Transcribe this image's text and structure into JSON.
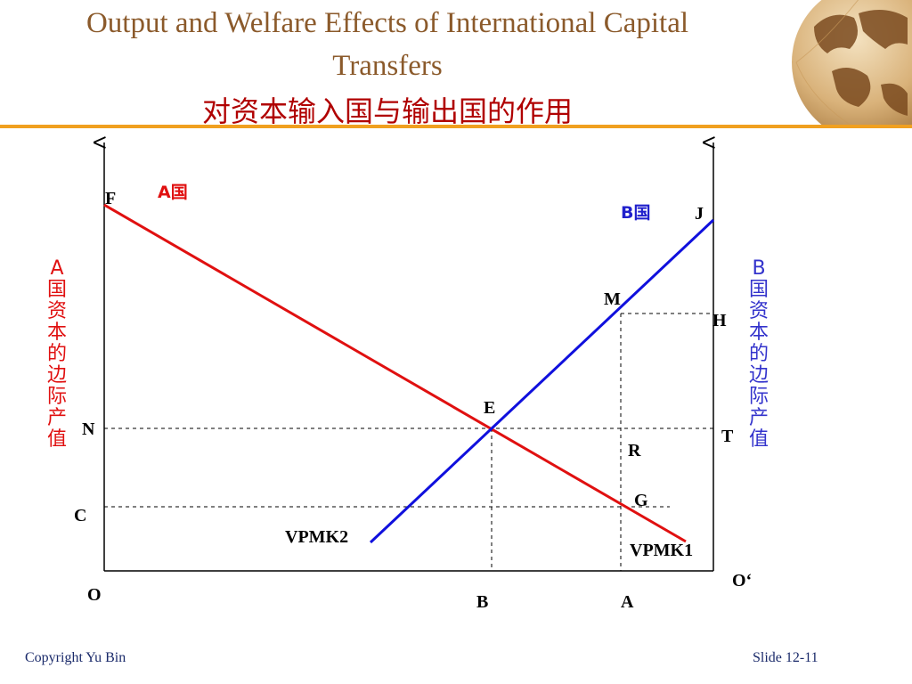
{
  "title": {
    "line1": "Output and Welfare Effects of International Capital",
    "line2": "Transfers",
    "line_zh": "对资本输入国与输出国的作用"
  },
  "axis_labels": {
    "a_side": "A国资本的边际产值",
    "b_side": "B国资本的边际产值"
  },
  "curve_labels": {
    "country_a": "A国",
    "country_b": "B国",
    "vpmk1": "VPMK1",
    "vpmk2": "VPMK2"
  },
  "points": {
    "F": "F",
    "J": "J",
    "M": "M",
    "H": "H",
    "E": "E",
    "N": "N",
    "T": "T",
    "R": "R",
    "G": "G",
    "C": "C",
    "O": "O",
    "O_prime": "O‘",
    "B": "B",
    "A": "A"
  },
  "colors": {
    "country_a": "#E01010",
    "country_b": "#1010DD",
    "title": "#8B5A2B",
    "title_zh": "#B00000",
    "rule": "#F0A020"
  },
  "footer": {
    "copyright": "Copyright Yu Bin",
    "slide": "Slide 12-11"
  }
}
